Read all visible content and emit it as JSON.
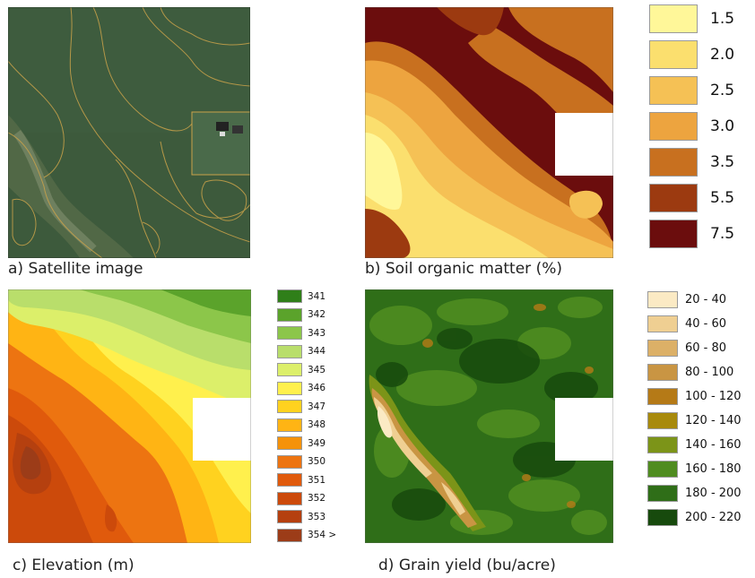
{
  "panels": {
    "a": {
      "caption": "a) Satellite image"
    },
    "b": {
      "caption": "b) Soil organic matter (%)"
    },
    "c": {
      "caption": "c) Elevation (m)"
    },
    "d": {
      "caption": "d) Grain yield (bu/acre)"
    }
  },
  "legends": {
    "organic_matter": {
      "labels": [
        "1.5",
        "2.0",
        "2.5",
        "3.0",
        "3.5",
        "5.5",
        "7.5"
      ],
      "colors": [
        "#fff799",
        "#fbdf6e",
        "#f5c155",
        "#eda43f",
        "#c8701f",
        "#9c3a10",
        "#6b0d0d"
      ]
    },
    "elevation": {
      "labels": [
        "341",
        "342",
        "343",
        "344",
        "345",
        "346",
        "347",
        "348",
        "349",
        "350",
        "351",
        "352",
        "353",
        "354 >"
      ],
      "colors": [
        "#2f7f19",
        "#5ba32b",
        "#8cc64a",
        "#b9de6b",
        "#dcef6a",
        "#fff04d",
        "#ffd21f",
        "#ffb414",
        "#f5920a",
        "#ed7411",
        "#e05a0c",
        "#cc4a0b",
        "#b5400f",
        "#9c3c18"
      ]
    },
    "yield": {
      "labels": [
        "20 - 40",
        "40 - 60",
        "60 - 80",
        "80 - 100",
        "100 - 120",
        "120 - 140",
        "140 - 160",
        "160 - 180",
        "180 - 200",
        "200 - 220"
      ],
      "colors": [
        "#fbeac4",
        "#efcf92",
        "#dcb067",
        "#c99543",
        "#b57a17",
        "#a88a0c",
        "#7c9418",
        "#4f8c20",
        "#2f6e18",
        "#174a0d"
      ]
    }
  }
}
